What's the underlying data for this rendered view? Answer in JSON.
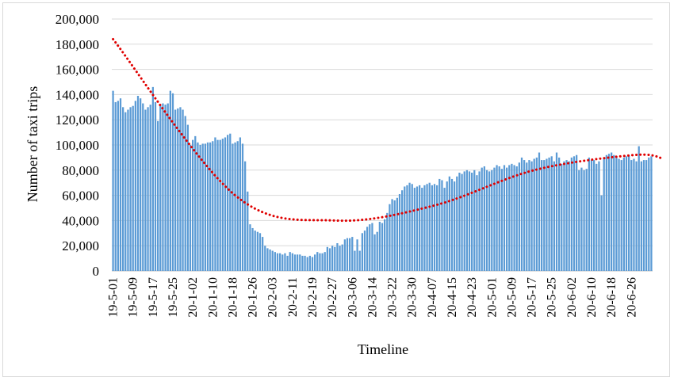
{
  "chart_data": {
    "type": "bar",
    "title": "",
    "xlabel": "Timeline",
    "ylabel": "Number of taxi  trips",
    "ylim": [
      0,
      200000
    ],
    "y_ticks": [
      0,
      20000,
      40000,
      60000,
      80000,
      100000,
      120000,
      140000,
      160000,
      180000,
      200000
    ],
    "y_tick_labels": [
      "0",
      "20,000",
      "40,000",
      "60,000",
      "80,000",
      "100,000",
      "120,000",
      "140,000",
      "160,000",
      "180,000",
      "200,000"
    ],
    "x_tick_labels": [
      "19-5-01",
      "19-5-09",
      "19-5-17",
      "19-5-25",
      "20-1-02",
      "20-1-10",
      "20-1-18",
      "20-1-26",
      "20-2-03",
      "20-2-11",
      "20-2-19",
      "20-2-27",
      "20-3-06",
      "20-3-14",
      "20-3-22",
      "20-3-30",
      "20-4-07",
      "20-4-15",
      "20-4-23",
      "20-5-01",
      "20-5-09",
      "20-5-17",
      "20-5-25",
      "20-6-02",
      "20-6-10",
      "20-6-18",
      "20-6-26"
    ],
    "grid": true,
    "legend": false,
    "bar_color": "#5b9bd5",
    "trendline_color": "#e00000",
    "trendline_style": "dotted polynomial",
    "series": [
      {
        "values": [
          143000,
          134000,
          135000,
          137000,
          130000,
          126000,
          128000,
          130000,
          131000,
          135000,
          139000,
          137000,
          133000,
          128000,
          130000,
          132000,
          146000,
          134000,
          119000,
          131000,
          133000,
          132000,
          133000,
          143000,
          141000,
          128000,
          129000,
          130000,
          128000,
          123000,
          116000,
          100000,
          104000,
          107000,
          102000,
          100000,
          101000,
          101000,
          102000,
          102000,
          103000,
          106000,
          104000,
          104000,
          105000,
          106000,
          108000,
          109000,
          101000,
          102000,
          103000,
          106000,
          101000,
          87000,
          63000,
          37000,
          34000,
          32000,
          31000,
          30000,
          27000,
          20000,
          18000,
          17000,
          16000,
          15000,
          14000,
          14000,
          13000,
          14000,
          12000,
          15000,
          14000,
          13000,
          13000,
          13000,
          12000,
          12000,
          11000,
          12000,
          11000,
          13000,
          15000,
          14000,
          14000,
          15000,
          19000,
          18000,
          20000,
          19000,
          22000,
          20000,
          21000,
          25000,
          26000,
          26000,
          27000,
          16000,
          25000,
          16000,
          30000,
          32000,
          35000,
          37000,
          38000,
          29000,
          31000,
          39000,
          38000,
          41000,
          46000,
          53000,
          57000,
          56000,
          58000,
          61000,
          64000,
          67000,
          68000,
          70000,
          69000,
          66000,
          67000,
          68000,
          66000,
          68000,
          69000,
          70000,
          68000,
          69000,
          68000,
          73000,
          72000,
          66000,
          71000,
          75000,
          73000,
          71000,
          75000,
          78000,
          77000,
          79000,
          80000,
          79000,
          78000,
          80000,
          76000,
          79000,
          82000,
          83000,
          80000,
          79000,
          80000,
          82000,
          84000,
          83000,
          81000,
          84000,
          82000,
          84000,
          85000,
          84000,
          83000,
          86000,
          90000,
          88000,
          86000,
          88000,
          87000,
          89000,
          90000,
          94000,
          88000,
          88000,
          89000,
          90000,
          91000,
          87000,
          94000,
          90000,
          85000,
          87000,
          88000,
          87000,
          90000,
          91000,
          92000,
          80000,
          82000,
          80000,
          81000,
          90000,
          88000,
          88000,
          85000,
          87000,
          60000,
          90000,
          92000,
          93000,
          94000,
          92000,
          91000,
          89000,
          88000,
          90000,
          91000,
          92000,
          88000,
          89000,
          87000,
          99000,
          87000,
          88000,
          88000,
          90000,
          91000
        ]
      }
    ],
    "trendline_points": [
      [
        1,
        184000
      ],
      [
        50,
        60000
      ],
      [
        90,
        40000
      ],
      [
        130,
        52000
      ],
      [
        170,
        80000
      ],
      [
        210,
        92000
      ],
      [
        222,
        89000
      ]
    ]
  }
}
